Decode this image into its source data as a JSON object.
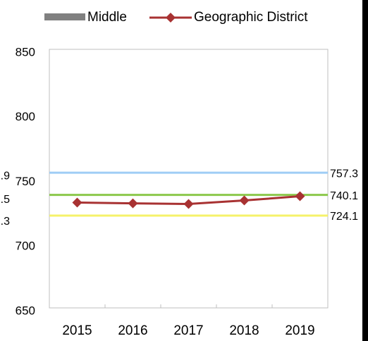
{
  "chart_data": {
    "type": "line",
    "categories": [
      "2015",
      "2016",
      "2017",
      "2018",
      "2019"
    ],
    "series": [
      {
        "name": "Middle",
        "color": "#808080",
        "values": [
          null,
          null,
          null,
          null,
          null
        ]
      },
      {
        "name": "Geographic District",
        "color": "#a83232",
        "values": [
          734.2,
          733.6,
          733.1,
          735.8,
          739.1
        ]
      }
    ],
    "reference_lines": [
      {
        "value": 757.3,
        "color": "#9fcdf5"
      },
      {
        "value": 740.1,
        "color": "#8cc84b"
      },
      {
        "value": 724.1,
        "color": "#f5f26a"
      }
    ],
    "annotations": [
      ".9",
      ".5",
      ".3"
    ],
    "ylim": [
      650,
      850
    ],
    "yticks": [
      650,
      700,
      750,
      800,
      850
    ],
    "grid": false,
    "legend": "top"
  }
}
